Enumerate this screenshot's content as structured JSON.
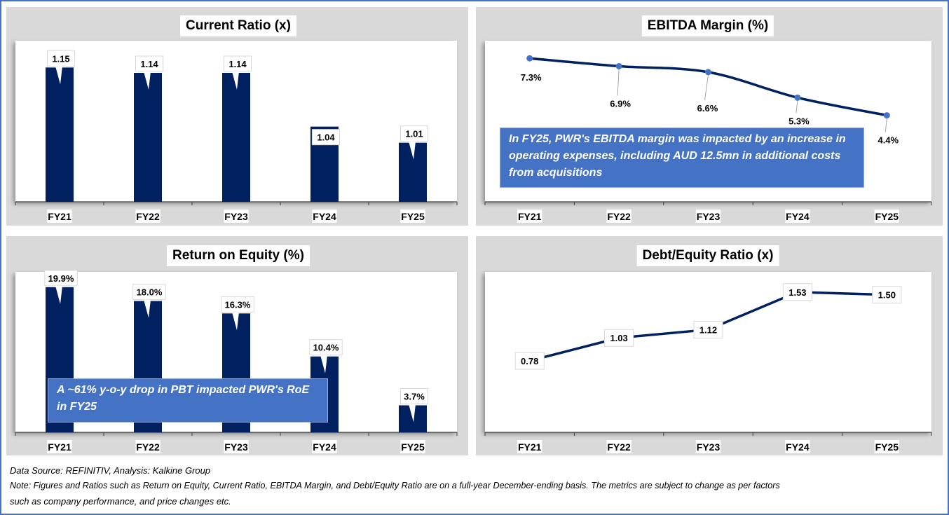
{
  "colors": {
    "frame": "#4472C4",
    "panel_bg": "#D9D9D9",
    "bar": "#002060",
    "line": "#002060",
    "marker": "#4472C4",
    "callout_bg": "#4472C4"
  },
  "chart_data": [
    {
      "id": "current_ratio",
      "type": "bar",
      "title": "Current Ratio (x)",
      "categories": [
        "FY21",
        "FY22",
        "FY23",
        "FY24",
        "FY25"
      ],
      "values": [
        1.15,
        1.14,
        1.14,
        1.04,
        1.01
      ],
      "labels": [
        "1.15",
        "1.14",
        "1.14",
        "1.04",
        "1.01"
      ],
      "ylim": [
        0.9,
        1.2
      ],
      "xlabel": "",
      "ylabel": "",
      "grid": false,
      "legend": "none"
    },
    {
      "id": "ebitda_margin",
      "type": "line",
      "title": "EBITDA Margin (%)",
      "categories": [
        "FY21",
        "FY22",
        "FY23",
        "FY24",
        "FY25"
      ],
      "values": [
        7.3,
        6.9,
        6.6,
        5.3,
        4.4
      ],
      "labels": [
        "7.3%",
        "6.9%",
        "6.6%",
        "5.3%",
        "4.4%"
      ],
      "ylim": [
        0,
        8.2
      ],
      "xlabel": "",
      "ylabel": "",
      "grid": false,
      "legend": "none",
      "annotation": "In FY25, PWR's EBITDA margin was impacted by an increase in operating expenses, including AUD 12.5mn in additional costs from acquisitions"
    },
    {
      "id": "return_on_equity",
      "type": "bar",
      "title": "Return on Equity (%)",
      "categories": [
        "FY21",
        "FY22",
        "FY23",
        "FY24",
        "FY25"
      ],
      "values": [
        19.9,
        18.0,
        16.3,
        10.4,
        3.7
      ],
      "labels": [
        "19.9%",
        "18.0%",
        "16.3%",
        "10.4%",
        "3.7%"
      ],
      "ylim": [
        0,
        22
      ],
      "xlabel": "",
      "ylabel": "",
      "grid": false,
      "legend": "none",
      "annotation": "A ~61% y-o-y drop in PBT impacted PWR's RoE in FY25"
    },
    {
      "id": "debt_equity_ratio",
      "type": "line",
      "title": "Debt/Equity Ratio (x)",
      "categories": [
        "FY21",
        "FY22",
        "FY23",
        "FY24",
        "FY25"
      ],
      "values": [
        0.78,
        1.03,
        1.12,
        1.53,
        1.5
      ],
      "labels": [
        "0.78",
        "1.03",
        "1.12",
        "1.53",
        "1.50"
      ],
      "ylim": [
        0,
        1.75
      ],
      "xlabel": "",
      "ylabel": "",
      "grid": false,
      "legend": "none"
    }
  ],
  "footer": {
    "source": "Data Source: REFINITIV, Analysis: Kalkine Group",
    "note_line1": "Note: Figures and Ratios such as Return on Equity, Current Ratio, EBITDA Margin, and Debt/Equity Ratio  are on a full-year December-ending basis. The metrics are subject to change as per factors",
    "note_line2": "such as company performance, and price changes etc."
  }
}
